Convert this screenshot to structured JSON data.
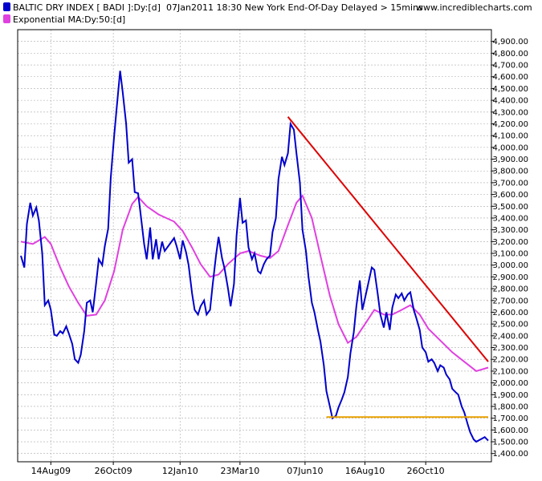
{
  "header": {
    "series_label": "BALTIC DRY INDEX [ BADI ]:Dy:[d]",
    "timestamp": "07Jan2011 18:30 New York End-Of-Day Delayed > 15mins",
    "site": "www.incrediblecharts.com",
    "ma_label": "Exponential MA:Dy:50:[d]"
  },
  "colors": {
    "price": "#0000cc",
    "ma": "#e040e0",
    "trendline": "#dd0000",
    "support": "#e8a000",
    "grid": "#aaaaaa",
    "frame": "#000000"
  },
  "chart_data": {
    "type": "line",
    "title": "",
    "xlabel": "",
    "ylabel": "",
    "ylim": [
      1330,
      5000
    ],
    "y_ticks": [
      1400,
      1500,
      1600,
      1700,
      1800,
      1900,
      2000,
      2100,
      2200,
      2300,
      2400,
      2500,
      2600,
      2700,
      2800,
      2900,
      3000,
      3100,
      3200,
      3300,
      3400,
      3500,
      3600,
      3700,
      3800,
      3900,
      4000,
      4100,
      4200,
      4300,
      4400,
      4500,
      4600,
      4700,
      4800,
      4900
    ],
    "y_tick_labels": [
      "1,400.00",
      "1,500.00",
      "1,600.00",
      "1,700.00",
      "1,800.00",
      "1,900.00",
      "2,000.00",
      "2,100.00",
      "2,200.00",
      "2,300.00",
      "2,400.00",
      "2,500.00",
      "2,600.00",
      "2,700.00",
      "2,800.00",
      "2,900.00",
      "3,000.00",
      "3,100.00",
      "3,200.00",
      "3,300.00",
      "3,400.00",
      "3,500.00",
      "3,600.00",
      "3,700.00",
      "3,800.00",
      "3,900.00",
      "4,000.00",
      "4,100.00",
      "4,200.00",
      "4,300.00",
      "4,400.00",
      "4,500.00",
      "4,600.00",
      "4,700.00",
      "4,800.00",
      "4,900.00"
    ],
    "x_range": [
      "2009-07-10",
      "2011-01-07"
    ],
    "x_tick_dates": [
      "2009-08-14",
      "2009-10-26",
      "2010-01-12",
      "2010-03-23",
      "2010-06-07",
      "2010-08-16",
      "2010-10-26"
    ],
    "x_tick_labels": [
      "14Aug09",
      "26Oct09",
      "12Jan10",
      "23Mar10",
      "07Jun10",
      "16Aug10",
      "26Oct10"
    ],
    "grid": true,
    "legend_position": "top-left",
    "series": [
      {
        "name": "BALTIC DRY INDEX [ BADI ]:Dy:[d]",
        "points": [
          [
            "2009-07-10",
            3080
          ],
          [
            "2009-07-14",
            2980
          ],
          [
            "2009-07-17",
            3350
          ],
          [
            "2009-07-21",
            3530
          ],
          [
            "2009-07-24",
            3420
          ],
          [
            "2009-07-28",
            3490
          ],
          [
            "2009-07-31",
            3380
          ],
          [
            "2009-08-04",
            3100
          ],
          [
            "2009-08-07",
            2660
          ],
          [
            "2009-08-11",
            2700
          ],
          [
            "2009-08-14",
            2620
          ],
          [
            "2009-08-18",
            2410
          ],
          [
            "2009-08-21",
            2400
          ],
          [
            "2009-08-25",
            2440
          ],
          [
            "2009-08-28",
            2420
          ],
          [
            "2009-09-01",
            2480
          ],
          [
            "2009-09-04",
            2420
          ],
          [
            "2009-09-08",
            2330
          ],
          [
            "2009-09-11",
            2200
          ],
          [
            "2009-09-15",
            2170
          ],
          [
            "2009-09-18",
            2240
          ],
          [
            "2009-09-22",
            2440
          ],
          [
            "2009-09-25",
            2680
          ],
          [
            "2009-09-29",
            2700
          ],
          [
            "2009-10-02",
            2600
          ],
          [
            "2009-10-06",
            2850
          ],
          [
            "2009-10-09",
            3050
          ],
          [
            "2009-10-13",
            3000
          ],
          [
            "2009-10-16",
            3160
          ],
          [
            "2009-10-20",
            3310
          ],
          [
            "2009-10-23",
            3740
          ],
          [
            "2009-10-27",
            4100
          ],
          [
            "2009-10-30",
            4340
          ],
          [
            "2009-11-03",
            4650
          ],
          [
            "2009-11-06",
            4470
          ],
          [
            "2009-11-10",
            4200
          ],
          [
            "2009-11-13",
            3870
          ],
          [
            "2009-11-17",
            3900
          ],
          [
            "2009-11-20",
            3620
          ],
          [
            "2009-11-24",
            3610
          ],
          [
            "2009-11-27",
            3430
          ],
          [
            "2009-12-01",
            3180
          ],
          [
            "2009-12-04",
            3050
          ],
          [
            "2009-12-08",
            3320
          ],
          [
            "2009-12-11",
            3050
          ],
          [
            "2009-12-15",
            3220
          ],
          [
            "2009-12-18",
            3050
          ],
          [
            "2009-12-22",
            3200
          ],
          [
            "2009-12-25",
            3120
          ],
          [
            "2010-01-05",
            3230
          ],
          [
            "2010-01-08",
            3160
          ],
          [
            "2010-01-12",
            3050
          ],
          [
            "2010-01-15",
            3210
          ],
          [
            "2010-01-19",
            3110
          ],
          [
            "2010-01-22",
            3000
          ],
          [
            "2010-01-26",
            2760
          ],
          [
            "2010-01-29",
            2620
          ],
          [
            "2010-02-02",
            2580
          ],
          [
            "2010-02-05",
            2650
          ],
          [
            "2010-02-09",
            2700
          ],
          [
            "2010-02-12",
            2580
          ],
          [
            "2010-02-16",
            2620
          ],
          [
            "2010-02-19",
            2830
          ],
          [
            "2010-02-23",
            3080
          ],
          [
            "2010-02-26",
            3240
          ],
          [
            "2010-03-02",
            3060
          ],
          [
            "2010-03-05",
            2970
          ],
          [
            "2010-03-09",
            2800
          ],
          [
            "2010-03-12",
            2650
          ],
          [
            "2010-03-16",
            2840
          ],
          [
            "2010-03-19",
            3250
          ],
          [
            "2010-03-23",
            3570
          ],
          [
            "2010-03-26",
            3360
          ],
          [
            "2010-03-30",
            3380
          ],
          [
            "2010-04-02",
            3150
          ],
          [
            "2010-04-06",
            3050
          ],
          [
            "2010-04-09",
            3100
          ],
          [
            "2010-04-13",
            2950
          ],
          [
            "2010-04-16",
            2930
          ],
          [
            "2010-04-20",
            3010
          ],
          [
            "2010-04-23",
            3050
          ],
          [
            "2010-04-27",
            3080
          ],
          [
            "2010-04-30",
            3280
          ],
          [
            "2010-05-04",
            3400
          ],
          [
            "2010-05-07",
            3730
          ],
          [
            "2010-05-11",
            3920
          ],
          [
            "2010-05-14",
            3850
          ],
          [
            "2010-05-18",
            3950
          ],
          [
            "2010-05-21",
            4200
          ],
          [
            "2010-05-25",
            4150
          ],
          [
            "2010-05-28",
            3950
          ],
          [
            "2010-06-01",
            3700
          ],
          [
            "2010-06-04",
            3300
          ],
          [
            "2010-06-08",
            3120
          ],
          [
            "2010-06-11",
            2900
          ],
          [
            "2010-06-15",
            2680
          ],
          [
            "2010-06-18",
            2600
          ],
          [
            "2010-06-22",
            2450
          ],
          [
            "2010-06-25",
            2350
          ],
          [
            "2010-06-29",
            2150
          ],
          [
            "2010-07-02",
            1930
          ],
          [
            "2010-07-06",
            1800
          ],
          [
            "2010-07-09",
            1700
          ],
          [
            "2010-07-13",
            1720
          ],
          [
            "2010-07-16",
            1790
          ],
          [
            "2010-07-20",
            1860
          ],
          [
            "2010-07-23",
            1920
          ],
          [
            "2010-07-27",
            2050
          ],
          [
            "2010-07-30",
            2250
          ],
          [
            "2010-08-03",
            2430
          ],
          [
            "2010-08-06",
            2650
          ],
          [
            "2010-08-10",
            2870
          ],
          [
            "2010-08-13",
            2620
          ],
          [
            "2010-08-17",
            2750
          ],
          [
            "2010-08-20",
            2850
          ],
          [
            "2010-08-24",
            2980
          ],
          [
            "2010-08-27",
            2960
          ],
          [
            "2010-08-31",
            2750
          ],
          [
            "2010-09-03",
            2580
          ],
          [
            "2010-09-07",
            2470
          ],
          [
            "2010-09-10",
            2600
          ],
          [
            "2010-09-14",
            2450
          ],
          [
            "2010-09-17",
            2640
          ],
          [
            "2010-09-21",
            2750
          ],
          [
            "2010-09-24",
            2720
          ],
          [
            "2010-09-28",
            2760
          ],
          [
            "2010-10-01",
            2700
          ],
          [
            "2010-10-05",
            2750
          ],
          [
            "2010-10-08",
            2770
          ],
          [
            "2010-10-12",
            2620
          ],
          [
            "2010-10-15",
            2550
          ],
          [
            "2010-10-19",
            2450
          ],
          [
            "2010-10-22",
            2300
          ],
          [
            "2010-10-26",
            2260
          ],
          [
            "2010-10-29",
            2180
          ],
          [
            "2010-11-02",
            2200
          ],
          [
            "2010-11-05",
            2170
          ],
          [
            "2010-11-09",
            2100
          ],
          [
            "2010-11-12",
            2150
          ],
          [
            "2010-11-16",
            2130
          ],
          [
            "2010-11-19",
            2070
          ],
          [
            "2010-11-23",
            2030
          ],
          [
            "2010-11-26",
            1950
          ],
          [
            "2010-11-30",
            1920
          ],
          [
            "2010-12-03",
            1900
          ],
          [
            "2010-12-07",
            1800
          ],
          [
            "2010-12-10",
            1750
          ],
          [
            "2010-12-14",
            1650
          ],
          [
            "2010-12-17",
            1580
          ],
          [
            "2010-12-21",
            1520
          ],
          [
            "2010-12-24",
            1500
          ],
          [
            "2011-01-03",
            1540
          ],
          [
            "2011-01-07",
            1510
          ]
        ]
      },
      {
        "name": "Exponential MA:Dy:50:[d]",
        "points": [
          [
            "2009-07-10",
            3200
          ],
          [
            "2009-07-24",
            3180
          ],
          [
            "2009-08-07",
            3240
          ],
          [
            "2009-08-14",
            3180
          ],
          [
            "2009-08-25",
            2980
          ],
          [
            "2009-09-04",
            2820
          ],
          [
            "2009-09-15",
            2680
          ],
          [
            "2009-09-25",
            2570
          ],
          [
            "2009-10-06",
            2580
          ],
          [
            "2009-10-16",
            2700
          ],
          [
            "2009-10-27",
            2950
          ],
          [
            "2009-11-06",
            3300
          ],
          [
            "2009-11-17",
            3520
          ],
          [
            "2009-11-24",
            3580
          ],
          [
            "2009-12-04",
            3500
          ],
          [
            "2009-12-18",
            3430
          ],
          [
            "2010-01-05",
            3370
          ],
          [
            "2010-01-15",
            3290
          ],
          [
            "2010-01-26",
            3150
          ],
          [
            "2010-02-05",
            3010
          ],
          [
            "2010-02-16",
            2900
          ],
          [
            "2010-02-26",
            2920
          ],
          [
            "2010-03-09",
            3010
          ],
          [
            "2010-03-23",
            3100
          ],
          [
            "2010-04-02",
            3120
          ],
          [
            "2010-04-16",
            3080
          ],
          [
            "2010-04-27",
            3060
          ],
          [
            "2010-05-07",
            3120
          ],
          [
            "2010-05-18",
            3340
          ],
          [
            "2010-05-28",
            3530
          ],
          [
            "2010-06-04",
            3590
          ],
          [
            "2010-06-15",
            3400
          ],
          [
            "2010-06-25",
            3080
          ],
          [
            "2010-07-06",
            2740
          ],
          [
            "2010-07-16",
            2500
          ],
          [
            "2010-07-27",
            2340
          ],
          [
            "2010-08-06",
            2390
          ],
          [
            "2010-08-17",
            2510
          ],
          [
            "2010-08-27",
            2620
          ],
          [
            "2010-09-07",
            2580
          ],
          [
            "2010-09-17",
            2580
          ],
          [
            "2010-09-28",
            2620
          ],
          [
            "2010-10-08",
            2660
          ],
          [
            "2010-10-19",
            2580
          ],
          [
            "2010-10-29",
            2460
          ],
          [
            "2010-11-12",
            2360
          ],
          [
            "2010-11-26",
            2260
          ],
          [
            "2010-12-10",
            2180
          ],
          [
            "2010-12-24",
            2100
          ],
          [
            "2011-01-07",
            2130
          ]
        ]
      }
    ],
    "trendline": {
      "from": [
        "2010-05-18",
        4260
      ],
      "to": [
        "2011-01-07",
        2180
      ]
    },
    "support_line": {
      "from": [
        "2010-07-02",
        1710
      ],
      "to": [
        "2011-01-07",
        1710
      ]
    }
  }
}
